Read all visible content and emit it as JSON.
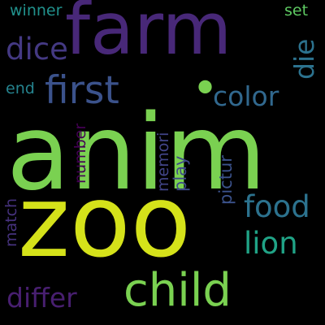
{
  "cloud": {
    "background": "#000000",
    "words": {
      "anim": {
        "text": "anim",
        "color": "#7ad151"
      },
      "zoo": {
        "text": "zoo",
        "color": "#d5e21a"
      },
      "farm": {
        "text": "farm",
        "color": "#482878"
      },
      "first": {
        "text": "first",
        "color": "#3b528b"
      },
      "child": {
        "text": "child",
        "color": "#7ad151"
      },
      "dice": {
        "text": "dice",
        "color": "#443983"
      },
      "color": {
        "text": "color",
        "color": "#31688e"
      },
      "food": {
        "text": "food",
        "color": "#2c728e"
      },
      "lion": {
        "text": "lion",
        "color": "#20a386"
      },
      "differ": {
        "text": "differ",
        "color": "#481f70"
      },
      "die": {
        "text": "die",
        "color": "#2c728e"
      },
      "winner": {
        "text": "winner",
        "color": "#21918c"
      },
      "set": {
        "text": "set",
        "color": "#5ec962"
      },
      "end": {
        "text": "end",
        "color": "#25838e"
      },
      "number": {
        "text": "number",
        "color": "#440154"
      },
      "memori": {
        "text": "memori",
        "color": "#414487"
      },
      "play": {
        "text": "play",
        "color": "#3e4a89"
      },
      "pictur": {
        "text": "pictur",
        "color": "#3b528b"
      },
      "match": {
        "text": "match",
        "color": "#46327e"
      },
      "dot": {
        "text": "•",
        "color": "#7ad151"
      }
    }
  }
}
